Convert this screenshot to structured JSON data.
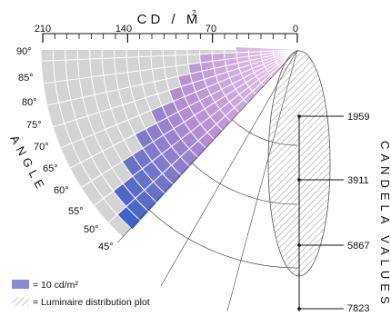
{
  "title": "CD / M",
  "title_superscript": "2",
  "top_scale": {
    "ticks": [
      "210",
      "140",
      "70",
      "0"
    ]
  },
  "angle_axis": {
    "label": "ANGLE",
    "ticks": [
      "90°",
      "85°",
      "80°",
      "75°",
      "70°",
      "65°",
      "60°",
      "55°",
      "50°",
      "45°"
    ]
  },
  "candela_axis": {
    "label": "CANDELA VALUES",
    "ticks": [
      "1959",
      "3911",
      "5867",
      "7823"
    ]
  },
  "legend": [
    {
      "swatch": "solid",
      "label": "= 10 cd/m²"
    },
    {
      "swatch": "hatched",
      "label": "= Luminaire distribution plot"
    }
  ],
  "colors": {
    "fan_background": "#d4d4d4",
    "grid": "#ffffff",
    "low_luminance": "#f0d0ee",
    "mid_luminance": "#b48cd0",
    "high_luminance": "#2e5cc4",
    "legend_swatch": "#8a8ad4",
    "hatch": "#999999"
  },
  "chart_data": {
    "type": "polar-luminance-diagram",
    "unit": "cd/m²",
    "cell_value": 10,
    "luminance_range": [
      0,
      210
    ],
    "angles": [
      45,
      50,
      55,
      60,
      65,
      70,
      75,
      80,
      85,
      90
    ],
    "luminance": [
      {
        "angle": 45,
        "value": 200
      },
      {
        "angle": 50,
        "value": 190
      },
      {
        "angle": 55,
        "value": 170
      },
      {
        "angle": 60,
        "value": 150
      },
      {
        "angle": 65,
        "value": 130
      },
      {
        "angle": 70,
        "value": 110
      },
      {
        "angle": 75,
        "value": 100
      },
      {
        "angle": 80,
        "value": 90
      },
      {
        "angle": 85,
        "value": 80
      },
      {
        "angle": 90,
        "value": 50
      }
    ],
    "candela_scale": [
      1959,
      3911,
      5867,
      7823
    ],
    "distribution_plot": "hatched ellipse"
  }
}
